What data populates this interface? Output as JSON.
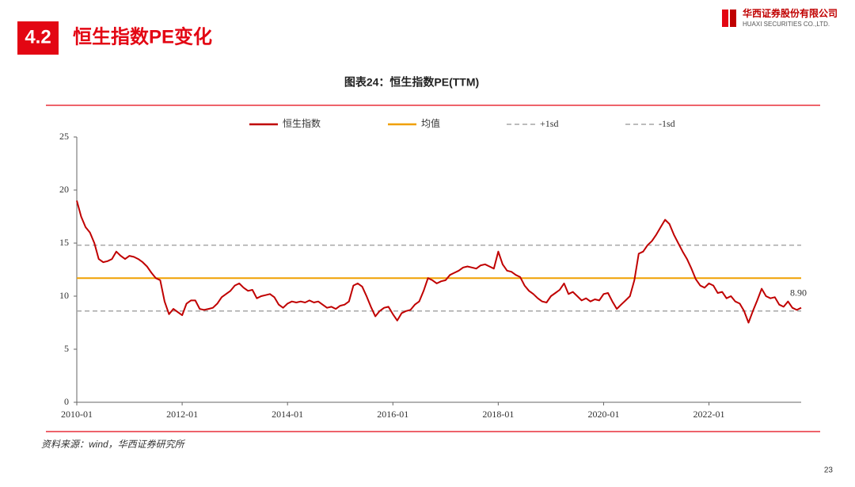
{
  "header": {
    "section": "4.2",
    "title": "恒生指数PE变化",
    "company_cn": "华西证券股份有限公司",
    "company_en": "HUAXI SECURITIES CO.,LTD."
  },
  "chart_data": {
    "type": "line",
    "title": "图表24：恒生指数PE(TTM)",
    "x": [
      "2010-01",
      "2010-02",
      "2010-03",
      "2010-04",
      "2010-05",
      "2010-06",
      "2010-07",
      "2010-08",
      "2010-09",
      "2010-10",
      "2010-11",
      "2010-12",
      "2011-01",
      "2011-02",
      "2011-03",
      "2011-04",
      "2011-05",
      "2011-06",
      "2011-07",
      "2011-08",
      "2011-09",
      "2011-10",
      "2011-11",
      "2011-12",
      "2012-01",
      "2012-02",
      "2012-03",
      "2012-04",
      "2012-05",
      "2012-06",
      "2012-07",
      "2012-08",
      "2012-09",
      "2012-10",
      "2012-11",
      "2012-12",
      "2013-01",
      "2013-02",
      "2013-03",
      "2013-04",
      "2013-05",
      "2013-06",
      "2013-07",
      "2013-08",
      "2013-09",
      "2013-10",
      "2013-11",
      "2013-12",
      "2014-01",
      "2014-02",
      "2014-03",
      "2014-04",
      "2014-05",
      "2014-06",
      "2014-07",
      "2014-08",
      "2014-09",
      "2014-10",
      "2014-11",
      "2014-12",
      "2015-01",
      "2015-02",
      "2015-03",
      "2015-04",
      "2015-05",
      "2015-06",
      "2015-07",
      "2015-08",
      "2015-09",
      "2015-10",
      "2015-11",
      "2015-12",
      "2016-01",
      "2016-02",
      "2016-03",
      "2016-04",
      "2016-05",
      "2016-06",
      "2016-07",
      "2016-08",
      "2016-09",
      "2016-10",
      "2016-11",
      "2016-12",
      "2017-01",
      "2017-02",
      "2017-03",
      "2017-04",
      "2017-05",
      "2017-06",
      "2017-07",
      "2017-08",
      "2017-09",
      "2017-10",
      "2017-11",
      "2017-12",
      "2018-01",
      "2018-02",
      "2018-03",
      "2018-04",
      "2018-05",
      "2018-06",
      "2018-07",
      "2018-08",
      "2018-09",
      "2018-10",
      "2018-11",
      "2018-12",
      "2019-01",
      "2019-02",
      "2019-03",
      "2019-04",
      "2019-05",
      "2019-06",
      "2019-07",
      "2019-08",
      "2019-09",
      "2019-10",
      "2019-11",
      "2019-12",
      "2020-01",
      "2020-02",
      "2020-03",
      "2020-04",
      "2020-05",
      "2020-06",
      "2020-07",
      "2020-08",
      "2020-09",
      "2020-10",
      "2020-11",
      "2020-12",
      "2021-01",
      "2021-02",
      "2021-03",
      "2021-04",
      "2021-05",
      "2021-06",
      "2021-07",
      "2021-08",
      "2021-09",
      "2021-10",
      "2021-11",
      "2021-12",
      "2022-01",
      "2022-02",
      "2022-03",
      "2022-04",
      "2022-05",
      "2022-06",
      "2022-07",
      "2022-08",
      "2022-09",
      "2022-10",
      "2022-11",
      "2022-12",
      "2023-01",
      "2023-02",
      "2023-03",
      "2023-04",
      "2023-05",
      "2023-06",
      "2023-07",
      "2023-08",
      "2023-09",
      "2023-10"
    ],
    "series": [
      {
        "name": "恒生指数",
        "color": "#c00000",
        "values": [
          19,
          17.5,
          16.5,
          16,
          15,
          13.5,
          13.2,
          13.3,
          13.5,
          14.2,
          13.8,
          13.5,
          13.8,
          13.7,
          13.5,
          13.2,
          12.8,
          12.2,
          11.7,
          11.5,
          9.5,
          8.3,
          8.8,
          8.5,
          8.2,
          9.3,
          9.6,
          9.6,
          8.8,
          8.7,
          8.8,
          8.9,
          9.3,
          9.9,
          10.2,
          10.5,
          11,
          11.2,
          10.8,
          10.5,
          10.6,
          9.8,
          10.0,
          10.1,
          10.2,
          9.9,
          9.2,
          8.9,
          9.3,
          9.5,
          9.4,
          9.5,
          9.4,
          9.6,
          9.4,
          9.5,
          9.2,
          8.9,
          9.0,
          8.8,
          9.1,
          9.2,
          9.5,
          11,
          11.2,
          10.9,
          10,
          9,
          8.1,
          8.6,
          8.9,
          9.0,
          8.3,
          7.7,
          8.4,
          8.6,
          8.7,
          9.2,
          9.5,
          10.5,
          11.7,
          11.5,
          11.2,
          11.4,
          11.5,
          12,
          12.2,
          12.4,
          12.7,
          12.8,
          12.7,
          12.6,
          12.9,
          13.0,
          12.8,
          12.6,
          14.2,
          13,
          12.4,
          12.3,
          12.0,
          11.8,
          11.0,
          10.5,
          10.2,
          9.8,
          9.5,
          9.4,
          10.0,
          10.3,
          10.6,
          11.2,
          10.2,
          10.4,
          10.0,
          9.6,
          9.8,
          9.5,
          9.7,
          9.6,
          10.2,
          10.3,
          9.5,
          8.8,
          9.2,
          9.6,
          10.0,
          11.5,
          14.0,
          14.2,
          14.8,
          15.2,
          15.8,
          16.5,
          17.2,
          16.8,
          15.8,
          15.0,
          14.2,
          13.5,
          12.6,
          11.6,
          11.0,
          10.8,
          11.2,
          11.0,
          10.3,
          10.4,
          9.8,
          10.0,
          9.5,
          9.3,
          8.6,
          7.5,
          8.6,
          9.6,
          10.7,
          10.0,
          9.8,
          9.9,
          9.2,
          9.0,
          9.5,
          8.9,
          8.7,
          8.9
        ]
      }
    ],
    "hlines": [
      {
        "name": "均值",
        "value": 11.7,
        "color": "#f0a000",
        "dashed": false
      },
      {
        "name": "+1sd",
        "value": 14.8,
        "color": "#a6a6a6",
        "dashed": true
      },
      {
        "name": "-1sd",
        "value": 8.6,
        "color": "#a6a6a6",
        "dashed": true
      }
    ],
    "annotations": [
      {
        "text": "8.90",
        "x": "2023-10",
        "y": 8.9
      }
    ],
    "xlim": [
      "2010-01",
      "2023-10"
    ],
    "xticks": [
      "2010-01",
      "2012-01",
      "2014-01",
      "2016-01",
      "2018-01",
      "2020-01",
      "2022-01"
    ],
    "ylim": [
      0,
      25
    ],
    "yticks": [
      0,
      5,
      10,
      15,
      20,
      25
    ],
    "grid": false,
    "legend": "top"
  },
  "footer": {
    "source": "资料来源：wind，华西证券研究所",
    "page": "23"
  }
}
